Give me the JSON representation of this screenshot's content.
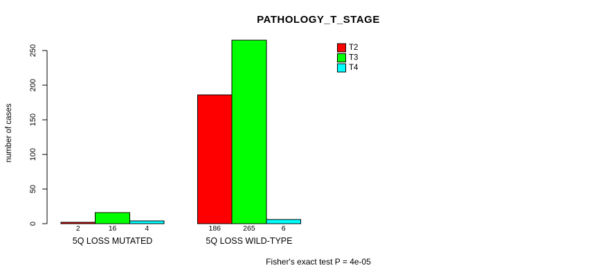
{
  "chart_data": {
    "type": "bar",
    "title": "PATHOLOGY_T_STAGE",
    "ylabel": "number of cases",
    "xlabel": "",
    "categories": [
      "5Q LOSS MUTATED",
      "5Q LOSS WILD-TYPE"
    ],
    "series": [
      {
        "name": "T2",
        "color": "#FF0000",
        "values": [
          2,
          186
        ]
      },
      {
        "name": "T3",
        "color": "#00FF00",
        "values": [
          16,
          265
        ]
      },
      {
        "name": "T4",
        "color": "#00FFFF",
        "values": [
          4,
          6
        ]
      }
    ],
    "bar_value_labels": [
      [
        "2",
        "16",
        "4"
      ],
      [
        "186",
        "265",
        "6"
      ]
    ],
    "yticks": [
      0,
      50,
      100,
      150,
      200,
      250
    ],
    "ylim": [
      0,
      250
    ],
    "grid": false,
    "legend_position": "top-right-inside",
    "note": "Fisher's exact test P = 4e-05"
  },
  "colors": {
    "background": "#FFFFFF",
    "axis": "#000000",
    "text": "#000000",
    "bar_border": "#000000"
  }
}
